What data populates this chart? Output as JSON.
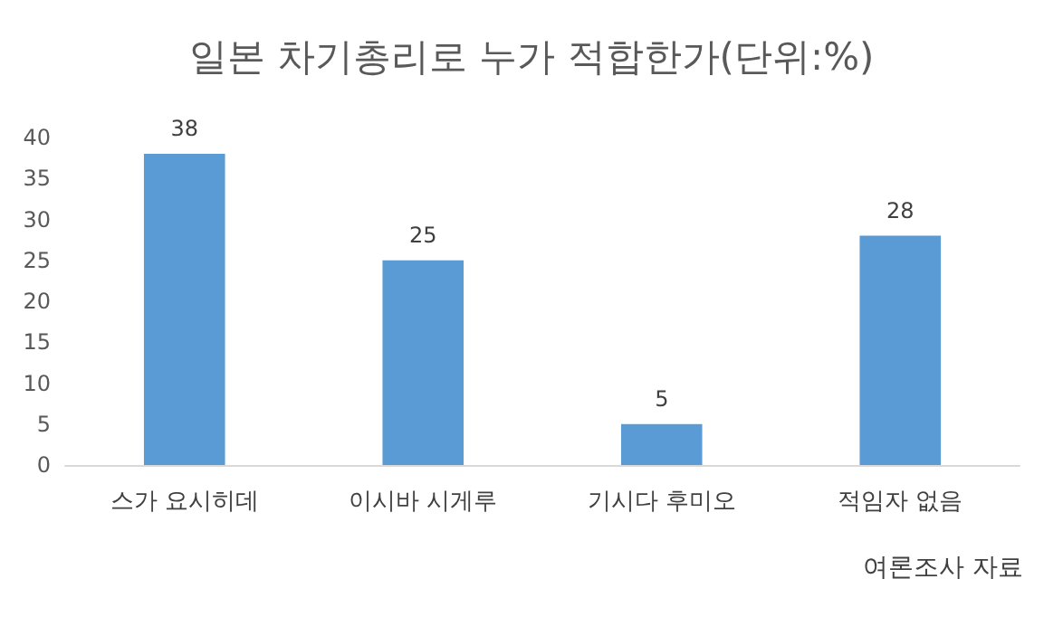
{
  "chart_data": {
    "type": "bar",
    "title": "일본 차기총리로 누가 적합한가(단위:%)",
    "categories": [
      "스가 요시히데",
      "이시바 시게루",
      "기시다 후미오",
      "적임자 없음"
    ],
    "values": [
      38,
      25,
      5,
      28
    ],
    "color": "#5b9bd5",
    "ylim": [
      0,
      40
    ],
    "yticks": [
      0,
      5,
      10,
      15,
      20,
      25,
      30,
      35,
      40
    ],
    "grid": false,
    "data_labels": true,
    "annotations": [
      "여론조사 자료"
    ]
  }
}
